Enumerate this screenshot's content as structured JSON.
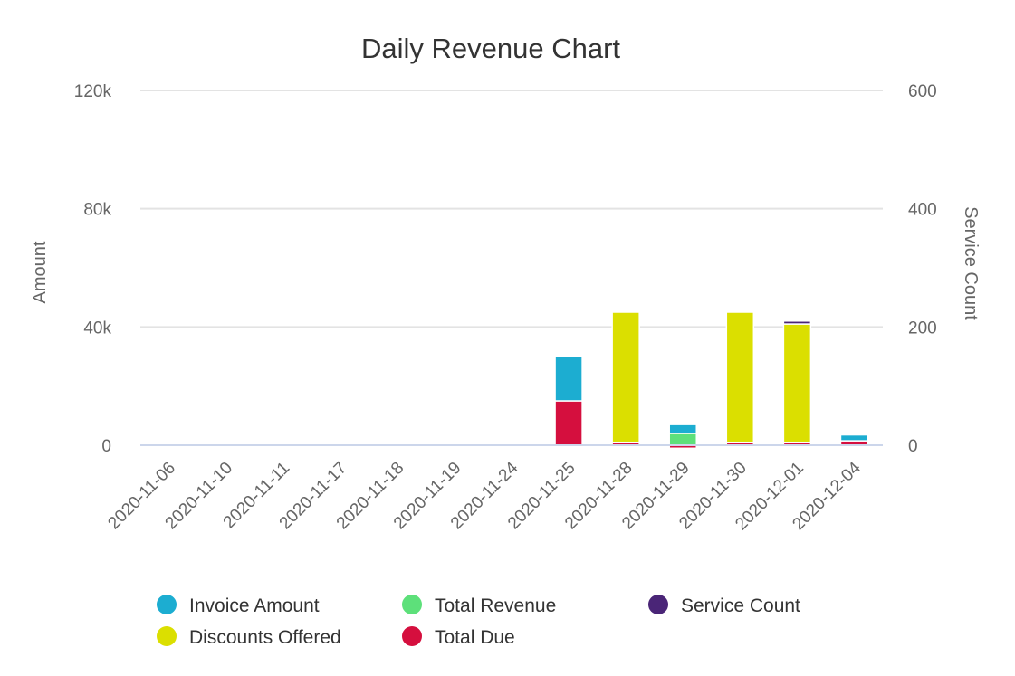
{
  "chart_data": {
    "type": "bar",
    "stacked": true,
    "title": "Daily Revenue Chart",
    "xlabel": "",
    "ylabel": "Amount",
    "y2label": "Service Count",
    "ylim": [
      0,
      120000
    ],
    "y2lim": [
      0,
      600
    ],
    "yticks": [
      "0",
      "40k",
      "80k",
      "120k"
    ],
    "y2ticks": [
      "0",
      "200",
      "400",
      "600"
    ],
    "grid": true,
    "legend_position": "bottom",
    "categories": [
      "2020-11-06",
      "2020-11-10",
      "2020-11-11",
      "2020-11-17",
      "2020-11-18",
      "2020-11-19",
      "2020-11-24",
      "2020-11-25",
      "2020-11-28",
      "2020-11-29",
      "2020-11-30",
      "2020-12-01",
      "2020-12-04"
    ],
    "series": [
      {
        "name": "Total Due",
        "color": "#d50f3e",
        "axis": "left",
        "values": [
          0,
          0,
          0,
          0,
          0,
          0,
          0,
          15000,
          1000,
          -1000,
          1000,
          1000,
          1500
        ]
      },
      {
        "name": "Discounts Offered",
        "color": "#dbdf00",
        "axis": "left",
        "values": [
          0,
          0,
          0,
          0,
          0,
          0,
          0,
          0,
          44000,
          0,
          44000,
          40000,
          0
        ]
      },
      {
        "name": "Total Revenue",
        "color": "#5de07a",
        "axis": "left",
        "values": [
          0,
          0,
          0,
          0,
          0,
          0,
          0,
          0,
          0,
          4000,
          0,
          0,
          0
        ]
      },
      {
        "name": "Invoice Amount",
        "color": "#1cadd1",
        "axis": "left",
        "values": [
          0,
          0,
          0,
          0,
          0,
          0,
          0,
          15000,
          0,
          3000,
          0,
          0,
          2000
        ]
      },
      {
        "name": "Service Count",
        "color": "#4a2577",
        "axis": "right",
        "values": [
          0,
          0,
          0,
          0,
          0,
          0,
          0,
          0,
          0,
          0,
          0,
          5,
          0
        ]
      }
    ],
    "legend": [
      {
        "name": "Invoice Amount",
        "color": "#1cadd1"
      },
      {
        "name": "Total Revenue",
        "color": "#5de07a"
      },
      {
        "name": "Service Count",
        "color": "#4a2577"
      },
      {
        "name": "Discounts Offered",
        "color": "#dbdf00"
      },
      {
        "name": "Total Due",
        "color": "#d50f3e"
      }
    ]
  }
}
